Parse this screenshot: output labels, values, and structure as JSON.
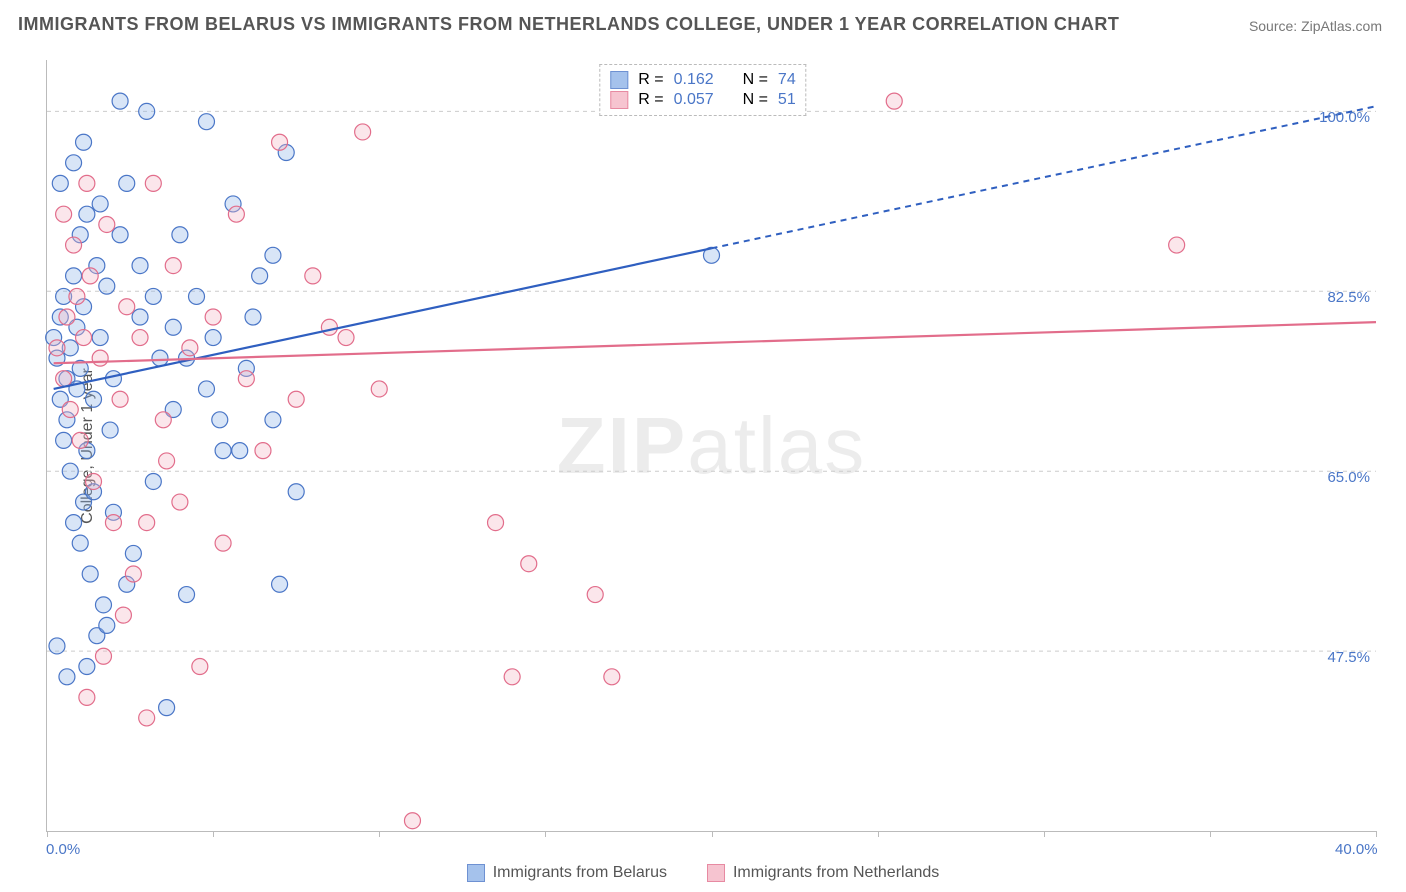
{
  "title": "IMMIGRANTS FROM BELARUS VS IMMIGRANTS FROM NETHERLANDS COLLEGE, UNDER 1 YEAR CORRELATION CHART",
  "source": "Source: ZipAtlas.com",
  "ylabel": "College, Under 1 year",
  "watermark_a": "ZIP",
  "watermark_b": "atlas",
  "chart": {
    "type": "scatter",
    "xlim": [
      0,
      40
    ],
    "ylim": [
      30,
      105
    ],
    "xticks": [
      0,
      5,
      10,
      15,
      20,
      25,
      30,
      35,
      40
    ],
    "xaxis_labels": [
      {
        "v": 0,
        "t": "0.0%"
      },
      {
        "v": 40,
        "t": "40.0%"
      }
    ],
    "ygrid": [
      47.5,
      65.0,
      82.5,
      100.0
    ],
    "yaxis_labels": [
      {
        "v": 47.5,
        "t": "47.5%"
      },
      {
        "v": 65.0,
        "t": "65.0%"
      },
      {
        "v": 82.5,
        "t": "82.5%"
      },
      {
        "v": 100.0,
        "t": "100.0%"
      }
    ],
    "grid_color": "#cccccc",
    "grid_dash": "4 4",
    "background_color": "#ffffff",
    "marker_radius": 8,
    "marker_stroke_width": 1.2,
    "marker_fill_opacity": 0.35,
    "series": [
      {
        "key": "belarus",
        "label": "Immigrants from Belarus",
        "fill": "#8fb4e8",
        "stroke": "#4a76c7",
        "line_color": "#2f5fc0",
        "R": "0.162",
        "N": "74",
        "fit": {
          "x1": 0.2,
          "y1": 73.0,
          "x2": 20.0,
          "y2": 86.0,
          "x3": 40.0,
          "y3": 100.5,
          "solid_end_x": 20.0
        },
        "points": [
          [
            0.2,
            78
          ],
          [
            0.3,
            76
          ],
          [
            0.4,
            72
          ],
          [
            0.4,
            80
          ],
          [
            0.5,
            68
          ],
          [
            0.5,
            82
          ],
          [
            0.6,
            74
          ],
          [
            0.6,
            70
          ],
          [
            0.7,
            77
          ],
          [
            0.7,
            65
          ],
          [
            0.8,
            84
          ],
          [
            0.8,
            60
          ],
          [
            0.9,
            73
          ],
          [
            0.9,
            79
          ],
          [
            1.0,
            75
          ],
          [
            1.0,
            88
          ],
          [
            1.1,
            62
          ],
          [
            1.1,
            81
          ],
          [
            1.2,
            67
          ],
          [
            1.2,
            90
          ],
          [
            1.3,
            55
          ],
          [
            1.4,
            72
          ],
          [
            1.5,
            85
          ],
          [
            1.5,
            49
          ],
          [
            1.6,
            78
          ],
          [
            1.7,
            52
          ],
          [
            1.8,
            83
          ],
          [
            1.9,
            69
          ],
          [
            2.0,
            74
          ],
          [
            2.2,
            101
          ],
          [
            2.4,
            93
          ],
          [
            2.6,
            57
          ],
          [
            2.8,
            80
          ],
          [
            3.0,
            100
          ],
          [
            3.2,
            64
          ],
          [
            3.4,
            76
          ],
          [
            3.6,
            42
          ],
          [
            3.8,
            71
          ],
          [
            4.0,
            88
          ],
          [
            4.2,
            53
          ],
          [
            4.5,
            82
          ],
          [
            4.8,
            99
          ],
          [
            5.0,
            78
          ],
          [
            5.3,
            67
          ],
          [
            5.6,
            91
          ],
          [
            6.0,
            75
          ],
          [
            6.4,
            84
          ],
          [
            6.8,
            70
          ],
          [
            7.2,
            96
          ],
          [
            7.5,
            63
          ],
          [
            0.3,
            48
          ],
          [
            0.6,
            45
          ],
          [
            1.0,
            58
          ],
          [
            1.2,
            46
          ],
          [
            1.4,
            63
          ],
          [
            1.8,
            50
          ],
          [
            2.0,
            61
          ],
          [
            2.4,
            54
          ],
          [
            0.4,
            93
          ],
          [
            0.8,
            95
          ],
          [
            1.1,
            97
          ],
          [
            1.6,
            91
          ],
          [
            2.2,
            88
          ],
          [
            2.8,
            85
          ],
          [
            3.2,
            82
          ],
          [
            3.8,
            79
          ],
          [
            4.2,
            76
          ],
          [
            4.8,
            73
          ],
          [
            5.2,
            70
          ],
          [
            5.8,
            67
          ],
          [
            6.2,
            80
          ],
          [
            6.8,
            86
          ],
          [
            7.0,
            54
          ],
          [
            20.0,
            86
          ]
        ]
      },
      {
        "key": "netherlands",
        "label": "Immigrants from Netherlands",
        "fill": "#f4b6c5",
        "stroke": "#e26d8b",
        "line_color": "#e26d8b",
        "R": "0.057",
        "N": "51",
        "fit": {
          "x1": 0.2,
          "y1": 75.5,
          "x2": 40.0,
          "y2": 79.5,
          "solid_end_x": 40.0
        },
        "points": [
          [
            0.3,
            77
          ],
          [
            0.5,
            74
          ],
          [
            0.6,
            80
          ],
          [
            0.7,
            71
          ],
          [
            0.9,
            82
          ],
          [
            1.0,
            68
          ],
          [
            1.1,
            78
          ],
          [
            1.3,
            84
          ],
          [
            1.4,
            64
          ],
          [
            1.6,
            76
          ],
          [
            1.8,
            89
          ],
          [
            2.0,
            60
          ],
          [
            2.2,
            72
          ],
          [
            2.4,
            81
          ],
          [
            2.6,
            55
          ],
          [
            2.8,
            78
          ],
          [
            3.0,
            41
          ],
          [
            3.2,
            93
          ],
          [
            3.5,
            70
          ],
          [
            3.8,
            85
          ],
          [
            4.0,
            62
          ],
          [
            4.3,
            77
          ],
          [
            4.6,
            46
          ],
          [
            5.0,
            80
          ],
          [
            5.3,
            58
          ],
          [
            5.7,
            90
          ],
          [
            6.0,
            74
          ],
          [
            6.5,
            67
          ],
          [
            7.0,
            97
          ],
          [
            7.5,
            72
          ],
          [
            8.0,
            84
          ],
          [
            8.5,
            79
          ],
          [
            9.0,
            78
          ],
          [
            9.5,
            98
          ],
          [
            10.0,
            73
          ],
          [
            1.2,
            43
          ],
          [
            1.7,
            47
          ],
          [
            2.3,
            51
          ],
          [
            3.0,
            60
          ],
          [
            3.6,
            66
          ],
          [
            11.0,
            31
          ],
          [
            13.5,
            60
          ],
          [
            14.5,
            56
          ],
          [
            14.0,
            45
          ],
          [
            16.5,
            53
          ],
          [
            17.0,
            45
          ],
          [
            25.5,
            101
          ],
          [
            34.0,
            87
          ],
          [
            0.5,
            90
          ],
          [
            0.8,
            87
          ],
          [
            1.2,
            93
          ]
        ]
      }
    ]
  },
  "legend_labels": {
    "R": "R  =",
    "N": "N  ="
  }
}
